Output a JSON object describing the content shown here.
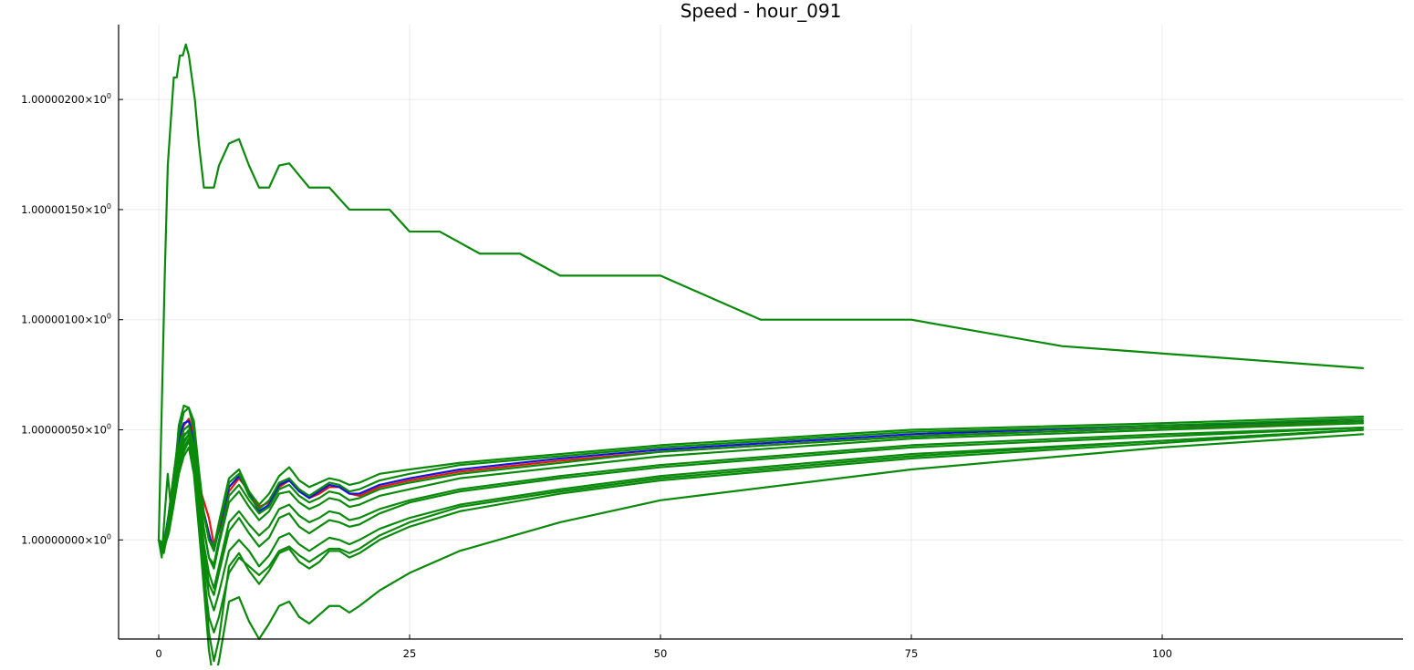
{
  "chart_data": {
    "type": "line",
    "title": "Speed - hour_091",
    "xlabel": "",
    "ylabel": "",
    "xlim": [
      -4,
      124
    ],
    "ylim": [
      0.99999955,
      1.00000234
    ],
    "xticks": [
      0,
      25,
      50,
      75,
      100
    ],
    "xtick_labels": [
      "0",
      "25",
      "50",
      "75",
      "100"
    ],
    "yticks": [
      1.0,
      1.0000005,
      1.000001,
      1.0000015,
      1.000002
    ],
    "ytick_labels": [
      {
        "mantissa": "1.00000000×10",
        "exp": "0"
      },
      {
        "mantissa": "1.00000050×10",
        "exp": "0"
      },
      {
        "mantissa": "1.00000100×10",
        "exp": "0"
      },
      {
        "mantissa": "1.00000150×10",
        "exp": "0"
      },
      {
        "mantissa": "1.00000200×10",
        "exp": "0"
      }
    ],
    "grid": true,
    "legend": "none",
    "colors": {
      "red": "#e3190f",
      "blue": "#1414d9",
      "green": "#0a8a0a"
    },
    "series": [
      {
        "color": "red",
        "x": [
          0,
          0.5,
          1,
          1.5,
          2,
          2.5,
          3,
          3.5,
          4,
          5,
          5.5,
          6,
          7,
          8,
          9,
          10,
          11,
          12,
          13,
          14,
          15,
          16,
          17,
          18,
          19,
          20,
          22,
          25,
          30,
          40,
          50,
          75,
          100,
          120
        ],
        "y": [
          1.0,
          0.99999995,
          1.0000001,
          1.00000028,
          1.00000045,
          1.00000052,
          1.00000055,
          1.00000048,
          1.00000025,
          1.0000001,
          0.99999998,
          1.00000004,
          1.00000022,
          1.00000028,
          1.00000022,
          1.00000015,
          1.00000017,
          1.00000024,
          1.00000027,
          1.00000023,
          1.00000019,
          1.00000021,
          1.00000024,
          1.00000024,
          1.00000021,
          1.0000002,
          1.00000024,
          1.00000027,
          1.00000031,
          1.00000036,
          1.0000004,
          1.00000047,
          1.00000051,
          1.00000053
        ]
      },
      {
        "color": "blue",
        "x": [
          0,
          0.5,
          1,
          1.5,
          2,
          2.5,
          3,
          3.5,
          4,
          5,
          5.5,
          6,
          7,
          8,
          9,
          10,
          11,
          12,
          13,
          14,
          15,
          16,
          17,
          18,
          19,
          20,
          22,
          25,
          30,
          40,
          50,
          75,
          100,
          120
        ],
        "y": [
          1.0,
          0.99999998,
          1.00000012,
          1.0000003,
          1.00000046,
          1.00000053,
          1.00000054,
          1.00000044,
          1.00000022,
          1.00000003,
          0.99999995,
          1.00000005,
          1.00000024,
          1.00000029,
          1.00000021,
          1.00000013,
          1.00000016,
          1.00000025,
          1.00000027,
          1.00000022,
          1.00000019,
          1.00000022,
          1.00000025,
          1.00000024,
          1.00000021,
          1.00000021,
          1.00000025,
          1.00000028,
          1.00000032,
          1.00000037,
          1.00000041,
          1.00000048,
          1.00000052,
          1.00000054
        ]
      },
      {
        "color": "green",
        "x": [
          0,
          0.3,
          0.6,
          0.9,
          1.2,
          1.5,
          1.8,
          2.1,
          2.4,
          2.7,
          3,
          3.3,
          3.6,
          4,
          4.5,
          5,
          5.5,
          6,
          7,
          8,
          9,
          10,
          11,
          12,
          13,
          15,
          17,
          19,
          21,
          23,
          25,
          28,
          32,
          36,
          40,
          50,
          60,
          75,
          90,
          105,
          120
        ],
        "y": [
          1.0,
          1.0000006,
          1.0000012,
          1.0000017,
          1.0000019,
          1.0000021,
          1.0000021,
          1.0000022,
          1.0000022,
          1.00000225,
          1.0000022,
          1.0000021,
          1.000002,
          1.0000018,
          1.0000016,
          1.0000016,
          1.0000016,
          1.0000017,
          1.0000018,
          1.00000182,
          1.0000017,
          1.0000016,
          1.0000016,
          1.0000017,
          1.00000171,
          1.0000016,
          1.0000016,
          1.0000015,
          1.0000015,
          1.0000015,
          1.0000014,
          1.0000014,
          1.0000013,
          1.0000013,
          1.0000012,
          1.0000012,
          1.000001,
          1.000001,
          1.00000088,
          1.00000083,
          1.00000078
        ]
      },
      {
        "color": "green",
        "x": [
          0,
          0.5,
          1,
          1.5,
          2,
          2.5,
          3,
          3.5,
          4,
          4.5,
          5,
          5.5,
          6,
          7,
          8,
          9,
          10,
          11,
          12,
          13,
          14,
          15,
          16,
          17,
          18,
          19,
          20,
          22,
          25,
          30,
          40,
          50,
          75,
          100,
          120
        ],
        "y": [
          1.0,
          0.99999995,
          1.00000012,
          1.0000003,
          1.00000048,
          1.00000058,
          1.0000006,
          1.0000005,
          1.0000003,
          1.00000012,
          1.0,
          0.99999995,
          1.00000006,
          1.00000026,
          1.0000003,
          1.0000002,
          1.00000014,
          1.00000018,
          1.00000026,
          1.00000028,
          1.00000023,
          1.0000002,
          1.00000023,
          1.00000026,
          1.00000025,
          1.00000022,
          1.00000023,
          1.00000027,
          1.0000003,
          1.00000034,
          1.00000038,
          1.00000042,
          1.00000049,
          1.00000052,
          1.00000055
        ]
      },
      {
        "color": "green",
        "x": [
          0,
          0.5,
          1,
          1.5,
          2,
          2.5,
          3,
          3.5,
          4,
          4.5,
          5,
          5.5,
          6,
          7,
          8,
          9,
          10,
          11,
          12,
          13,
          14,
          15,
          16,
          17,
          18,
          19,
          20,
          22,
          25,
          30,
          40,
          50,
          75,
          100,
          120
        ],
        "y": [
          1.0,
          0.99999998,
          1.0000001,
          1.00000027,
          1.00000042,
          1.0000005,
          1.00000052,
          1.00000043,
          1.00000024,
          1.00000005,
          0.99999992,
          0.99999987,
          0.99999998,
          1.00000017,
          1.00000022,
          1.00000015,
          1.00000009,
          1.00000013,
          1.00000021,
          1.00000022,
          1.00000017,
          1.00000014,
          1.00000016,
          1.00000019,
          1.00000018,
          1.00000015,
          1.00000016,
          1.0000002,
          1.00000023,
          1.00000028,
          1.00000033,
          1.00000038,
          1.00000046,
          1.0000005,
          1.00000053
        ]
      },
      {
        "color": "green",
        "x": [
          0,
          0.5,
          1,
          1.5,
          2,
          2.5,
          3,
          3.5,
          4,
          4.5,
          5,
          5.5,
          6,
          7,
          8,
          9,
          10,
          11,
          12,
          13,
          14,
          15,
          16,
          17,
          18,
          19,
          20,
          22,
          25,
          30,
          40,
          50,
          75,
          100,
          120
        ],
        "y": [
          1.0,
          0.99999995,
          1.00000008,
          1.00000025,
          1.0000004,
          1.00000048,
          1.00000049,
          1.00000038,
          1.00000018,
          0.99999998,
          0.99999985,
          0.99999978,
          0.99999988,
          1.00000008,
          1.00000013,
          1.00000007,
          1.00000002,
          1.00000006,
          1.00000014,
          1.00000016,
          1.00000011,
          1.00000008,
          1.0000001,
          1.00000013,
          1.00000012,
          1.00000009,
          1.0000001,
          1.00000014,
          1.00000018,
          1.00000023,
          1.00000029,
          1.00000034,
          1.00000043,
          1.00000048,
          1.00000051
        ]
      },
      {
        "color": "green",
        "x": [
          0,
          0.5,
          1,
          1.5,
          2,
          2.5,
          3,
          3.5,
          4,
          4.5,
          5,
          5.5,
          6,
          7,
          8,
          9,
          10,
          11,
          12,
          13,
          14,
          15,
          16,
          17,
          18,
          19,
          20,
          22,
          25,
          30,
          40,
          50,
          75,
          100,
          120
        ],
        "y": [
          1.0,
          0.99999997,
          1.00000006,
          1.0000002,
          1.00000035,
          1.00000045,
          1.00000048,
          1.00000038,
          1.00000015,
          0.99999992,
          0.99999975,
          0.99999968,
          0.99999976,
          0.99999995,
          1.0,
          0.99999995,
          0.99999988,
          0.99999993,
          1.00000001,
          1.00000003,
          0.99999998,
          0.99999995,
          0.99999998,
          1.00000001,
          1.0,
          0.99999998,
          1.0,
          1.00000005,
          1.0000001,
          1.00000016,
          1.00000023,
          1.00000029,
          1.00000039,
          1.00000045,
          1.0000005
        ]
      },
      {
        "color": "green",
        "x": [
          0,
          0.5,
          1,
          1.5,
          2,
          2.5,
          3,
          3.5,
          4,
          4.5,
          5,
          5.5,
          6,
          7,
          8,
          9,
          10,
          11,
          12,
          13,
          14,
          15,
          16,
          17,
          18,
          19,
          20,
          22,
          25,
          30,
          40,
          50,
          75,
          100,
          120
        ],
        "y": [
          1.0,
          0.99999996,
          1.00000003,
          1.00000016,
          1.0000003,
          1.0000004,
          1.00000045,
          1.00000035,
          1.0000001,
          0.99999985,
          0.99999965,
          0.99999958,
          0.99999965,
          0.99999985,
          0.99999992,
          0.99999988,
          0.99999984,
          0.99999988,
          0.99999995,
          0.99999997,
          0.99999993,
          0.9999999,
          0.99999993,
          0.99999996,
          0.99999996,
          0.99999994,
          0.99999996,
          1.00000002,
          1.00000008,
          1.00000015,
          1.00000022,
          1.00000028,
          1.00000038,
          1.00000045,
          1.0000005
        ]
      },
      {
        "color": "green",
        "x": [
          0,
          0.5,
          1,
          1.5,
          2,
          2.5,
          3,
          3.5,
          4,
          4.5,
          5,
          5.5,
          6,
          7,
          8,
          9,
          10,
          11,
          12,
          13,
          14,
          15,
          16,
          17,
          18,
          19,
          20,
          22,
          25,
          30,
          40,
          50,
          75,
          100,
          120
        ],
        "y": [
          1.0,
          0.99999998,
          1.00000004,
          1.0000002,
          1.00000032,
          1.00000042,
          1.00000046,
          1.00000036,
          1.00000012,
          0.99999988,
          0.99999958,
          0.99999945,
          0.99999955,
          0.99999988,
          0.99999994,
          0.99999986,
          0.9999998,
          0.99999986,
          0.99999994,
          0.99999996,
          0.9999999,
          0.99999987,
          0.9999999,
          0.99999995,
          0.99999995,
          0.99999992,
          0.99999994,
          1.0,
          1.00000006,
          1.00000013,
          1.00000021,
          1.00000027,
          1.00000037,
          1.00000044,
          1.0000005
        ]
      },
      {
        "color": "green",
        "x": [
          0,
          0.5,
          1,
          1.5,
          2,
          2.5,
          3,
          3.5,
          4,
          4.5,
          5,
          5.5,
          6,
          7,
          8,
          9,
          10,
          11,
          12,
          13,
          14,
          15,
          16,
          17,
          18,
          19,
          20,
          22,
          25,
          30,
          40,
          50,
          75,
          100,
          120
        ],
        "y": [
          1.0,
          0.99999995,
          1.00000004,
          1.00000018,
          1.0000003,
          1.00000038,
          1.00000042,
          1.0000003,
          1.00000005,
          0.99999978,
          0.9999995,
          0.99999935,
          0.99999945,
          0.99999972,
          0.99999974,
          0.99999963,
          0.99999955,
          0.99999962,
          0.9999997,
          0.99999972,
          0.99999965,
          0.99999962,
          0.99999966,
          0.9999997,
          0.9999997,
          0.99999967,
          0.9999997,
          0.99999977,
          0.99999985,
          0.99999995,
          1.00000008,
          1.00000018,
          1.00000032,
          1.00000042,
          1.00000048
        ]
      },
      {
        "color": "green",
        "x": [
          0,
          0.5,
          1,
          1.5,
          2,
          2.5,
          3,
          3.5,
          4,
          4.5,
          5,
          5.5,
          6,
          7,
          8,
          9,
          10,
          11,
          12,
          13,
          14,
          15,
          16,
          17,
          18,
          19,
          20,
          22,
          25,
          30,
          40,
          50,
          75,
          100,
          120
        ],
        "y": [
          1.0,
          0.99999997,
          1.00000008,
          1.00000023,
          1.00000038,
          1.00000047,
          1.0000005,
          1.00000042,
          1.00000024,
          1.00000005,
          0.99999992,
          0.99999989,
          1.0,
          1.0000002,
          1.00000025,
          1.00000018,
          1.00000012,
          1.00000015,
          1.00000023,
          1.00000025,
          1.0000002,
          1.00000017,
          1.00000019,
          1.00000022,
          1.00000021,
          1.00000018,
          1.00000019,
          1.00000023,
          1.00000026,
          1.0000003,
          1.00000035,
          1.0000004,
          1.00000047,
          1.00000051,
          1.00000054
        ]
      },
      {
        "color": "green",
        "x": [
          0,
          0.5,
          1,
          1.5,
          2,
          2.5,
          3,
          3.5,
          4,
          4.5,
          5,
          5.5,
          6,
          7,
          8,
          9,
          10,
          11,
          12,
          13,
          14,
          15,
          16,
          17,
          18,
          19,
          20,
          22,
          25,
          30,
          40,
          50,
          75,
          100,
          120
        ],
        "y": [
          1.0,
          0.99999994,
          1.00000006,
          1.0000002,
          1.00000034,
          1.00000044,
          1.00000048,
          1.0000004,
          1.00000018,
          0.99999995,
          0.9999998,
          0.99999975,
          0.99999985,
          1.00000004,
          1.0000001,
          1.00000003,
          0.99999997,
          1.00000001,
          1.0000001,
          1.00000012,
          1.00000006,
          1.00000003,
          1.00000006,
          1.00000009,
          1.00000008,
          1.00000006,
          1.00000007,
          1.00000012,
          1.00000017,
          1.00000022,
          1.00000028,
          1.00000033,
          1.00000042,
          1.00000047,
          1.00000051
        ]
      },
      {
        "color": "green",
        "x": [
          0,
          0.3,
          0.6,
          0.9,
          1.2,
          1.5,
          2,
          2.5,
          3,
          3.5,
          4,
          4.5,
          5,
          5.5,
          6,
          7,
          8,
          9,
          10,
          11,
          12,
          13,
          14,
          15,
          16,
          17,
          18,
          19,
          20,
          22,
          25,
          30,
          40,
          50,
          75,
          100,
          120
        ],
        "y": [
          1.0,
          0.99999992,
          1.00000012,
          1.0000003,
          1.00000015,
          1.00000025,
          1.00000052,
          1.00000061,
          1.0000006,
          1.00000054,
          1.00000032,
          1.00000012,
          1.0,
          0.99999997,
          1.00000008,
          1.00000028,
          1.00000032,
          1.00000022,
          1.00000016,
          1.00000021,
          1.00000029,
          1.00000033,
          1.00000027,
          1.00000024,
          1.00000026,
          1.00000028,
          1.00000027,
          1.00000025,
          1.00000026,
          1.0000003,
          1.00000032,
          1.00000035,
          1.00000039,
          1.00000043,
          1.0000005,
          1.00000053,
          1.00000056
        ]
      }
    ]
  }
}
